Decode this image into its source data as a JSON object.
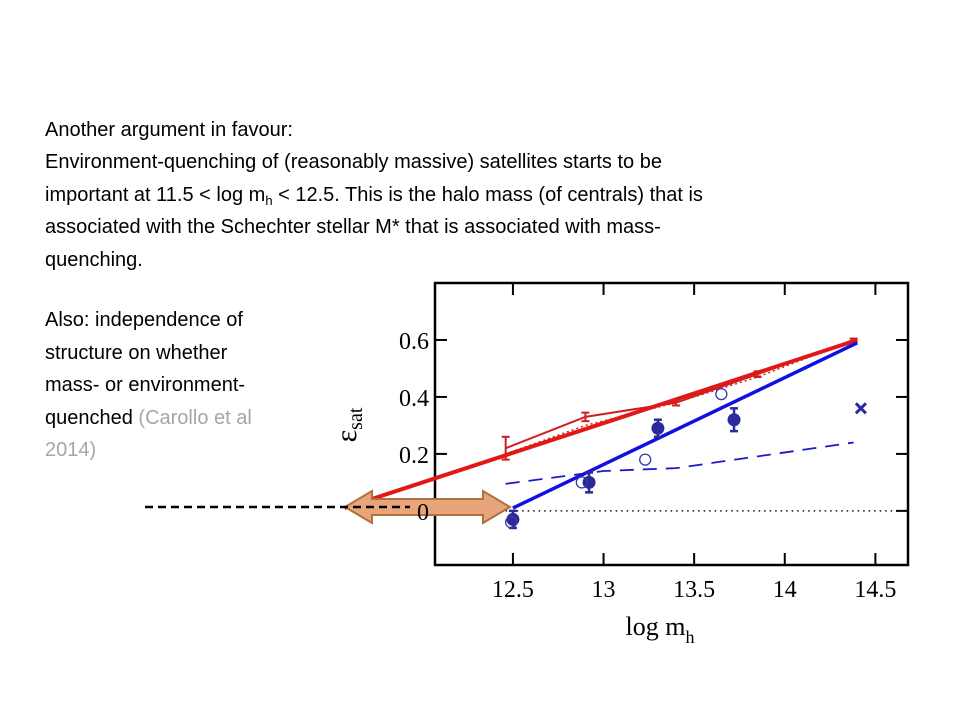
{
  "text": {
    "heading": "Another argument in favour:",
    "paragraph1": {
      "line1": "Environment-quenching of (reasonably massive) satellites starts to be",
      "line2": {
        "before": "important at 11.5 < log m",
        "sub": "h",
        "after": " < 12.5.  This is the halo mass (of centrals) that is"
      },
      "line3": "associated with the Schechter stellar M* that is associated with mass-",
      "line4": "quenching."
    },
    "paragraph2": {
      "lines": [
        "Also: independence of",
        "structure on whether",
        "mass- or environment-",
        "quenched "
      ],
      "citation_lines": [
        "(Carollo et al",
        "2014)"
      ]
    }
  },
  "chart_data": {
    "type": "line",
    "x_label": {
      "main": "log m",
      "sub": "h"
    },
    "y_label": {
      "main": "ε",
      "sub": "sat"
    },
    "xlim": [
      12.07,
      14.68
    ],
    "ylim": [
      -0.19,
      0.8
    ],
    "xticks": [
      12.5,
      13,
      13.5,
      14,
      14.5
    ],
    "yticks": [
      0,
      0.2,
      0.4,
      0.6
    ],
    "series": [
      {
        "kind": "line",
        "color": "#111111",
        "width": 1.5,
        "dash": "1.5 4",
        "x": [
          12.46,
          14.65
        ],
        "y": [
          0,
          0
        ]
      },
      {
        "kind": "line",
        "color": "#1a1acc",
        "width": 1.8,
        "dash": "14 9",
        "x": [
          12.46,
          13.0,
          13.4,
          14.38
        ],
        "y": [
          0.095,
          0.14,
          0.15,
          0.24
        ]
      },
      {
        "kind": "line",
        "color": "#cc2020",
        "width": 1.5,
        "dash": "2 3",
        "x": [
          12.46,
          12.9,
          13.4,
          13.85,
          14.38
        ],
        "y": [
          0.2,
          0.3,
          0.38,
          0.47,
          0.6
        ]
      },
      {
        "kind": "line",
        "color": "#cc2020",
        "width": 2,
        "dash": null,
        "marker": "errorbar",
        "x": [
          12.46,
          12.9,
          13.4,
          13.85,
          14.38
        ],
        "y": [
          0.22,
          0.33,
          0.38,
          0.48,
          0.6
        ],
        "yerr": [
          0.04,
          0.015,
          0.01,
          0.01,
          0.005
        ]
      },
      {
        "kind": "line",
        "color": "#e01818",
        "width": 4,
        "dash": null,
        "x": [
          11.57,
          14.4
        ],
        "y": [
          0.01,
          0.6
        ]
      },
      {
        "kind": "line",
        "color": "#1010e0",
        "width": 3.5,
        "dash": null,
        "x": [
          12.5,
          14.4
        ],
        "y": [
          0.01,
          0.59
        ]
      },
      {
        "kind": "points",
        "color": "#2a2a9a",
        "marker": "filled-circle",
        "x": [
          12.5,
          12.92,
          13.3,
          13.72
        ],
        "y": [
          -0.03,
          0.1,
          0.29,
          0.32
        ],
        "yerr": [
          0.03,
          0.035,
          0.03,
          0.04
        ]
      },
      {
        "kind": "points",
        "color": "#3a3aa8",
        "marker": "open-circle",
        "x": [
          12.49,
          12.88,
          13.23,
          13.65
        ],
        "y": [
          -0.04,
          0.1,
          0.18,
          0.41
        ]
      },
      {
        "kind": "points",
        "color": "#2a2a9a",
        "marker": "cross",
        "x": [
          14.42
        ],
        "y": [
          0.36
        ]
      }
    ]
  }
}
